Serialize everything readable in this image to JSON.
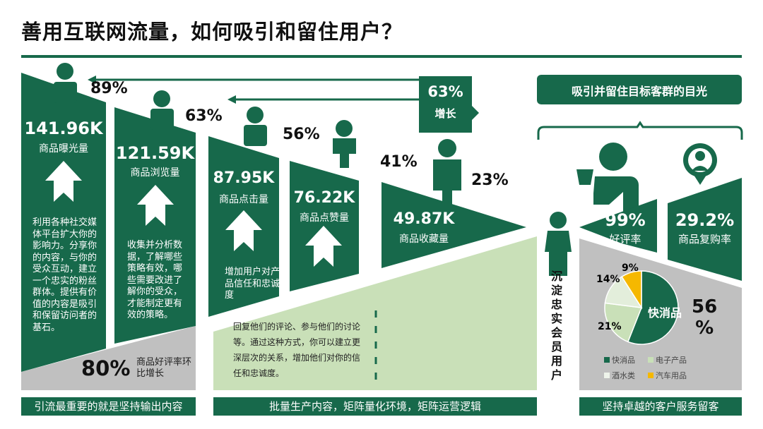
{
  "title": "善用互联网流量，如何吸引和留住用户？",
  "colors": {
    "green": "#17694b",
    "light_green": "#c9e0b8",
    "gray": "#c0c0c0",
    "yellow": "#f5b800"
  },
  "funnel": [
    {
      "value": "141.96K",
      "label": "商品曝光量",
      "text": "利用各种社交媒体平台扩大你的影响力。分享你的内容，与你的受众互动，建立一个忠实的粉丝群体。提供有价值的内容是吸引和保留访问者的基石。"
    },
    {
      "value": "121.59K",
      "label": "商品浏览量",
      "text": "收集并分析数据，了解哪些策略有效，哪些需要改进了解你的受众，才能制定更有效的策略。"
    },
    {
      "value": "87.95K",
      "label": "商品点击量",
      "text": "增加用户对产品信任和忠诚度"
    },
    {
      "value": "76.22K",
      "label": "商品点赞量"
    },
    {
      "value": "49.87K",
      "label": "商品收藏量"
    }
  ],
  "rates": [
    "89%",
    "63%",
    "56%",
    "41%",
    "23%"
  ],
  "growth": {
    "value": "63%",
    "label": "增长"
  },
  "review_growth": {
    "value": "80%",
    "label": "商品好评率环比增长"
  },
  "engage_text": "回复他们的评论、参与他们的讨论等。通过这种方式，你可以建立更深层次的关系，增加他们对你的信任和忠诚度。",
  "loyal_label": "沉淀忠实会员用户",
  "banner": "吸引并留住目标客群的目光",
  "right": [
    {
      "value": "99%",
      "label": "好评率"
    },
    {
      "value": "29.2%",
      "label": "商品复购率"
    }
  ],
  "bottom_bars": [
    "引流最重要的就是坚持输出内容",
    "批量生产内容，矩阵量化环境，矩阵运营逻辑",
    "坚持卓越的客户服务留客"
  ],
  "chart_data": {
    "type": "pie",
    "categories": [
      "快消品",
      "电子产品",
      "酒水类",
      "汽车用品"
    ],
    "values": [
      56,
      21,
      14,
      9
    ],
    "value_labels": [
      "56%",
      "21%",
      "14%",
      "9%"
    ],
    "colors": [
      "#17694b",
      "#c9e0b8",
      "#e3eedb",
      "#f5b800"
    ],
    "highlight_label": "快消品",
    "highlight_value": "56\n%",
    "legend": "bottom"
  }
}
